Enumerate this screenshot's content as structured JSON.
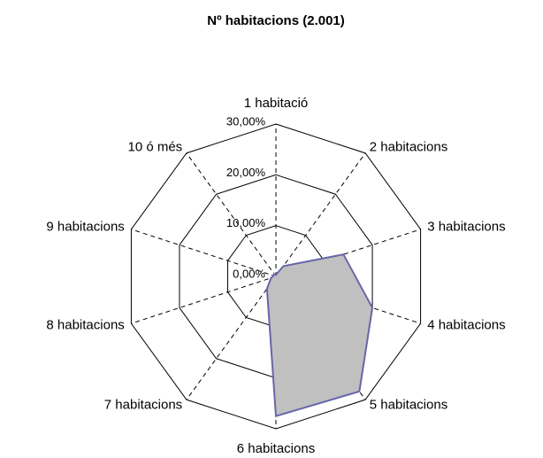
{
  "chart_data": {
    "type": "radar",
    "title": "Nº habitacions (2.001)",
    "categories": [
      "1 habitació",
      "2 habitacions",
      "3 habitacions",
      "4 habitacions",
      "5 habitacions",
      "6 habitacions",
      "7 habitacions",
      "8 habitacions",
      "9 habitacions",
      "10 ó més"
    ],
    "values": [
      0.3,
      2.5,
      14,
      20,
      28,
      27.5,
      3,
      1,
      0.5,
      0.5
    ],
    "color": "#c0c0c0",
    "stroke": "#6666aa",
    "ylim": [
      0,
      30
    ],
    "yticks": [
      {
        "value": 0,
        "label": "0,00%"
      },
      {
        "value": 10,
        "label": "10,00%"
      },
      {
        "value": 20,
        "label": "20,00%"
      },
      {
        "value": 30,
        "label": "30,00%"
      }
    ],
    "grid": true
  }
}
